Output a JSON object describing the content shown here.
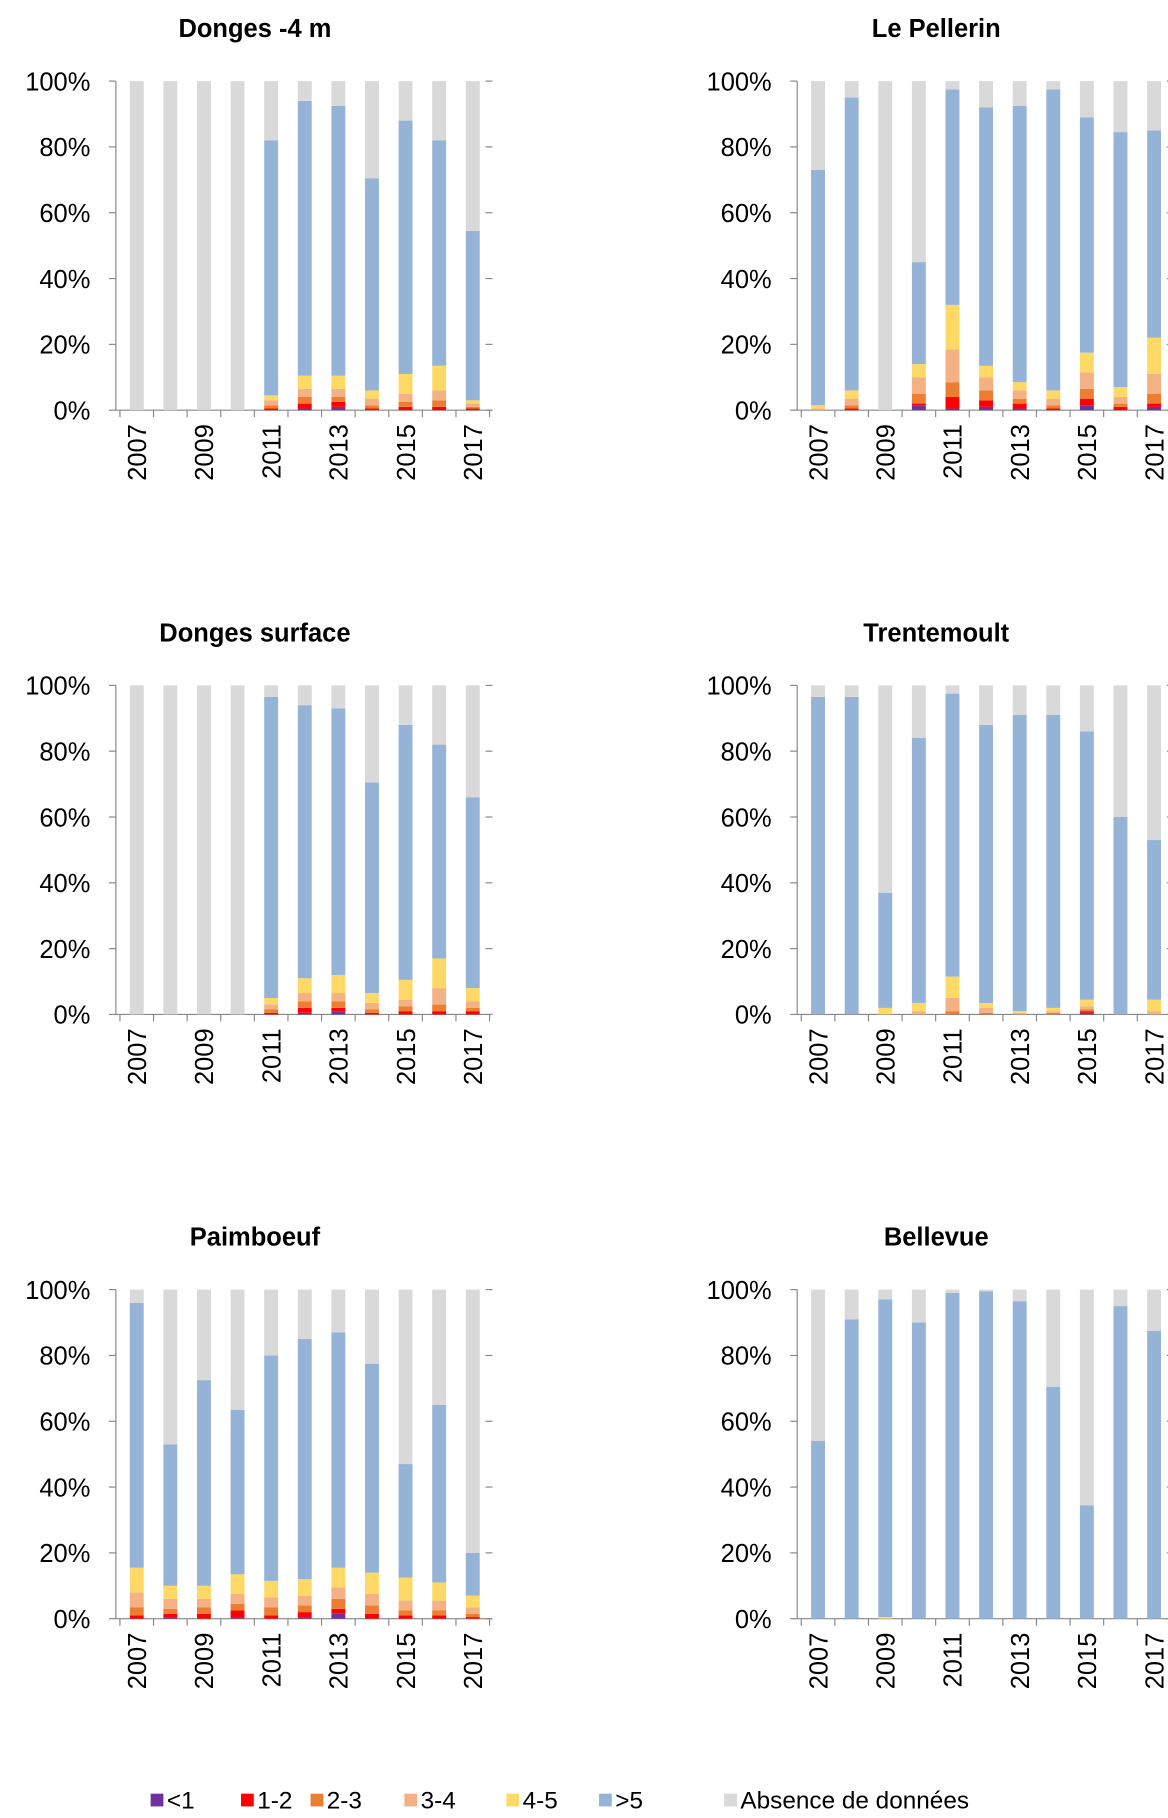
{
  "chart_data": [
    {
      "type": "bar",
      "stacked": true,
      "title": "Donges -4 m",
      "categories": [
        "2007",
        null,
        "2009",
        null,
        "2011",
        null,
        "2013",
        null,
        "2015",
        null,
        "2017"
      ],
      "ylim": [
        0,
        100
      ],
      "yticks": [
        {
          "value": 0,
          "label": "0%"
        },
        {
          "value": 20,
          "label": "20%"
        },
        {
          "value": 40,
          "label": "40%"
        },
        {
          "value": 60,
          "label": "60%"
        },
        {
          "value": 80,
          "label": "80%"
        },
        {
          "value": 100,
          "label": "100%"
        }
      ],
      "series": [
        {
          "name": "<1",
          "color": "#7030a0",
          "values": [
            0,
            0,
            0,
            0,
            0,
            0.5,
            1,
            0,
            0,
            0,
            0
          ]
        },
        {
          "name": "1-2",
          "color": "#ff0000",
          "values": [
            0,
            0,
            0,
            0,
            0.5,
            1.5,
            1.5,
            0.5,
            1,
            1,
            0.5
          ]
        },
        {
          "name": "2-3",
          "color": "#ed7d31",
          "values": [
            0,
            0,
            0,
            0,
            1,
            2,
            1.5,
            1,
            1.5,
            2,
            0.5
          ]
        },
        {
          "name": "3-4",
          "color": "#f4b183",
          "values": [
            0,
            0,
            0,
            0,
            1.5,
            2.5,
            2.5,
            2,
            2.5,
            3,
            1
          ]
        },
        {
          "name": "4-5",
          "color": "#ffd966",
          "values": [
            0,
            0,
            0,
            0,
            1.5,
            4,
            4,
            2.5,
            6,
            7.5,
            1
          ]
        },
        {
          "name": ">5",
          "color": "#95b3d7",
          "values": [
            0,
            0,
            0,
            0,
            77.5,
            83.5,
            82,
            64.5,
            77,
            68.5,
            51.5
          ]
        },
        {
          "name": "Absence de données",
          "color": "#d9d9d9",
          "values": [
            100,
            100,
            100,
            100,
            18,
            6,
            7.5,
            29.5,
            12,
            18,
            45.5
          ]
        }
      ]
    },
    {
      "type": "bar",
      "stacked": true,
      "title": "Le Pellerin",
      "categories": [
        "2007",
        null,
        "2009",
        null,
        "2011",
        null,
        "2013",
        null,
        "2015",
        null,
        "2017"
      ],
      "ylim": [
        0,
        100
      ],
      "yticks": [
        {
          "value": 0,
          "label": "0%"
        },
        {
          "value": 20,
          "label": "20%"
        },
        {
          "value": 40,
          "label": "40%"
        },
        {
          "value": 60,
          "label": "60%"
        },
        {
          "value": 80,
          "label": "80%"
        },
        {
          "value": 100,
          "label": "100%"
        }
      ],
      "series": [
        {
          "name": "<1",
          "color": "#7030a0",
          "values": [
            0,
            0,
            0,
            1.5,
            0.5,
            1,
            0.5,
            0,
            1.5,
            0,
            1
          ]
        },
        {
          "name": "1-2",
          "color": "#ff0000",
          "values": [
            0,
            0.5,
            0,
            0.5,
            3.5,
            2,
            1.5,
            0.5,
            2,
            1,
            1
          ]
        },
        {
          "name": "2-3",
          "color": "#ed7d31",
          "values": [
            0,
            1,
            0,
            3,
            4.5,
            3,
            1.5,
            1,
            3,
            1,
            3
          ]
        },
        {
          "name": "3-4",
          "color": "#f4b183",
          "values": [
            0.5,
            2,
            0,
            5,
            10,
            4,
            2.5,
            2,
            5,
            2,
            6
          ]
        },
        {
          "name": "4-5",
          "color": "#ffd966",
          "values": [
            1,
            2.5,
            0,
            4,
            13.5,
            3.5,
            2.5,
            2.5,
            6,
            3,
            11
          ]
        },
        {
          "name": ">5",
          "color": "#95b3d7",
          "values": [
            71.5,
            89,
            0,
            31,
            65.5,
            78.5,
            84,
            91.5,
            71.5,
            77.5,
            63
          ]
        },
        {
          "name": "Absence de données",
          "color": "#d9d9d9",
          "values": [
            27,
            5,
            100,
            55,
            2.5,
            8,
            7.5,
            2.5,
            11,
            15.5,
            15
          ]
        }
      ]
    },
    {
      "type": "bar",
      "stacked": true,
      "title": "Donges surface",
      "categories": [
        "2007",
        null,
        "2009",
        null,
        "2011",
        null,
        "2013",
        null,
        "2015",
        null,
        "2017"
      ],
      "ylim": [
        0,
        100
      ],
      "yticks": [
        {
          "value": 0,
          "label": "0%"
        },
        {
          "value": 20,
          "label": "20%"
        },
        {
          "value": 40,
          "label": "40%"
        },
        {
          "value": 60,
          "label": "60%"
        },
        {
          "value": 80,
          "label": "80%"
        },
        {
          "value": 100,
          "label": "100%"
        }
      ],
      "series": [
        {
          "name": "<1",
          "color": "#7030a0",
          "values": [
            0,
            0,
            0,
            0,
            0,
            0.5,
            1,
            0,
            0,
            0,
            0
          ]
        },
        {
          "name": "1-2",
          "color": "#ff0000",
          "values": [
            0,
            0,
            0,
            0,
            0.5,
            1.5,
            1,
            0.5,
            1,
            1,
            1
          ]
        },
        {
          "name": "2-3",
          "color": "#ed7d31",
          "values": [
            0,
            0,
            0,
            0,
            1,
            2,
            2,
            1,
            1.5,
            2,
            1
          ]
        },
        {
          "name": "3-4",
          "color": "#f4b183",
          "values": [
            0,
            0,
            0,
            0,
            1.5,
            2.5,
            2.5,
            2,
            2,
            5,
            2
          ]
        },
        {
          "name": "4-5",
          "color": "#ffd966",
          "values": [
            0,
            0,
            0,
            0,
            2,
            4.5,
            5.5,
            3,
            6,
            9,
            4
          ]
        },
        {
          "name": ">5",
          "color": "#95b3d7",
          "values": [
            0,
            0,
            0,
            0,
            91.5,
            83,
            81,
            64,
            77.5,
            65,
            58
          ]
        },
        {
          "name": "Absence de données",
          "color": "#d9d9d9",
          "values": [
            100,
            100,
            100,
            100,
            3.5,
            6,
            7,
            29.5,
            12,
            18,
            34
          ]
        }
      ]
    },
    {
      "type": "bar",
      "stacked": true,
      "title": "Trentemoult",
      "categories": [
        "2007",
        null,
        "2009",
        null,
        "2011",
        null,
        "2013",
        null,
        "2015",
        null,
        "2017"
      ],
      "ylim": [
        0,
        100
      ],
      "yticks": [
        {
          "value": 0,
          "label": "0%"
        },
        {
          "value": 20,
          "label": "20%"
        },
        {
          "value": 40,
          "label": "40%"
        },
        {
          "value": 60,
          "label": "60%"
        },
        {
          "value": 80,
          "label": "80%"
        },
        {
          "value": 100,
          "label": "100%"
        }
      ],
      "series": [
        {
          "name": "<1",
          "color": "#7030a0",
          "values": [
            0,
            0,
            0,
            0,
            0,
            0,
            0,
            0,
            0.5,
            0,
            0
          ]
        },
        {
          "name": "1-2",
          "color": "#ff0000",
          "values": [
            0,
            0,
            0,
            0,
            0,
            0,
            0,
            0,
            0.5,
            0,
            0
          ]
        },
        {
          "name": "2-3",
          "color": "#ed7d31",
          "values": [
            0,
            0,
            0,
            0,
            1,
            0.5,
            0,
            0.5,
            0.5,
            0,
            0
          ]
        },
        {
          "name": "3-4",
          "color": "#f4b183",
          "values": [
            0,
            0,
            0,
            1,
            4,
            1.5,
            0.5,
            0.5,
            1,
            0,
            1
          ]
        },
        {
          "name": "4-5",
          "color": "#ffd966",
          "values": [
            0,
            0,
            2,
            2.5,
            6.5,
            1.5,
            0.5,
            1,
            2,
            0,
            3.5
          ]
        },
        {
          "name": ">5",
          "color": "#95b3d7",
          "values": [
            96.5,
            96.5,
            35,
            80.5,
            86,
            84.5,
            90,
            89,
            81.5,
            60,
            48.5
          ]
        },
        {
          "name": "Absence de données",
          "color": "#d9d9d9",
          "values": [
            3.5,
            3.5,
            63,
            16,
            2.5,
            12,
            9,
            9,
            14,
            40,
            47
          ]
        }
      ]
    },
    {
      "type": "bar",
      "stacked": true,
      "title": "Paimboeuf",
      "categories": [
        "2007",
        null,
        "2009",
        null,
        "2011",
        null,
        "2013",
        null,
        "2015",
        null,
        "2017"
      ],
      "ylim": [
        0,
        100
      ],
      "yticks": [
        {
          "value": 0,
          "label": "0%"
        },
        {
          "value": 20,
          "label": "20%"
        },
        {
          "value": 40,
          "label": "40%"
        },
        {
          "value": 60,
          "label": "60%"
        },
        {
          "value": 80,
          "label": "80%"
        },
        {
          "value": 100,
          "label": "100%"
        }
      ],
      "series": [
        {
          "name": "<1",
          "color": "#7030a0",
          "values": [
            0,
            0.5,
            0,
            0.5,
            0,
            0.5,
            1.5,
            0,
            0,
            0,
            0
          ]
        },
        {
          "name": "1-2",
          "color": "#ff0000",
          "values": [
            1,
            1,
            1.5,
            2,
            1,
            1.5,
            1.5,
            1.5,
            1,
            1,
            0.5
          ]
        },
        {
          "name": "2-3",
          "color": "#ed7d31",
          "values": [
            2.5,
            1.5,
            2,
            2,
            2.5,
            2,
            3,
            2.5,
            1.5,
            1.5,
            1
          ]
        },
        {
          "name": "3-4",
          "color": "#f4b183",
          "values": [
            4.5,
            3,
            2.5,
            3,
            3,
            3,
            3.5,
            3.5,
            3,
            3,
            2
          ]
        },
        {
          "name": "4-5",
          "color": "#ffd966",
          "values": [
            7.5,
            4,
            4,
            6,
            5,
            5,
            6,
            6.5,
            7,
            5.5,
            3.5
          ]
        },
        {
          "name": ">5",
          "color": "#95b3d7",
          "values": [
            80.5,
            43,
            62.5,
            50,
            68.5,
            73,
            71.5,
            63.5,
            34.5,
            54,
            13
          ]
        },
        {
          "name": "Absence de données",
          "color": "#d9d9d9",
          "values": [
            4,
            47,
            27.5,
            36.5,
            20,
            15,
            13,
            22.5,
            53,
            35,
            80
          ]
        }
      ]
    },
    {
      "type": "bar",
      "stacked": true,
      "title": "Bellevue",
      "categories": [
        "2007",
        null,
        "2009",
        null,
        "2011",
        null,
        "2013",
        null,
        "2015",
        null,
        "2017"
      ],
      "ylim": [
        0,
        100
      ],
      "yticks": [
        {
          "value": 0,
          "label": "0%"
        },
        {
          "value": 20,
          "label": "20%"
        },
        {
          "value": 40,
          "label": "40%"
        },
        {
          "value": 60,
          "label": "60%"
        },
        {
          "value": 80,
          "label": "80%"
        },
        {
          "value": 100,
          "label": "100%"
        }
      ],
      "series": [
        {
          "name": "<1",
          "color": "#7030a0",
          "values": [
            0,
            0,
            0,
            0,
            0,
            0,
            0,
            0,
            0,
            0,
            0
          ]
        },
        {
          "name": "1-2",
          "color": "#ff0000",
          "values": [
            0,
            0,
            0,
            0,
            0,
            0,
            0,
            0,
            0,
            0,
            0
          ]
        },
        {
          "name": "2-3",
          "color": "#ed7d31",
          "values": [
            0,
            0,
            0,
            0,
            0,
            0,
            0,
            0,
            0,
            0,
            0
          ]
        },
        {
          "name": "3-4",
          "color": "#f4b183",
          "values": [
            0,
            0,
            0,
            0,
            0,
            0,
            0,
            0,
            0,
            0,
            0
          ]
        },
        {
          "name": "4-5",
          "color": "#ffd966",
          "values": [
            0,
            0,
            0.5,
            0,
            0,
            0,
            0,
            0,
            0,
            0,
            0
          ]
        },
        {
          "name": ">5",
          "color": "#95b3d7",
          "values": [
            54,
            91,
            96.5,
            90,
            99,
            99.5,
            96.5,
            70.5,
            34.5,
            95,
            87.5
          ]
        },
        {
          "name": "Absence de données",
          "color": "#d9d9d9",
          "values": [
            46,
            9,
            3,
            10,
            1,
            0.5,
            3.5,
            29.5,
            65.5,
            5,
            12.5
          ]
        }
      ]
    }
  ]
}
